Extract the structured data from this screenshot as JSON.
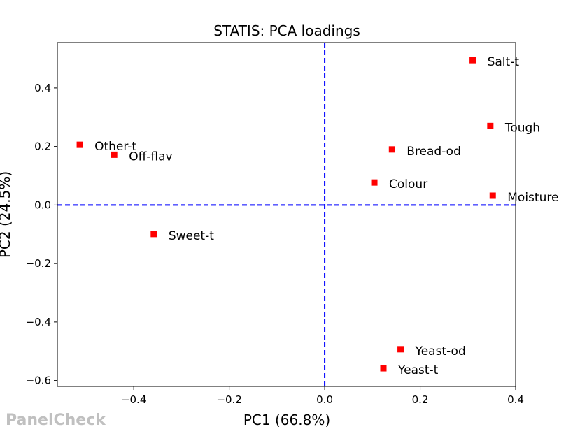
{
  "chart_data": {
    "type": "scatter",
    "title": "STATIS: PCA loadings",
    "xlabel": "PC1 (66.8%)",
    "ylabel": "PC2 (24.5%)",
    "xlim": [
      -0.56,
      0.4
    ],
    "ylim": [
      -0.62,
      0.555
    ],
    "xticks": [
      -0.4,
      -0.2,
      0.0,
      0.2,
      0.4
    ],
    "xtick_labels": [
      "−0.4",
      "−0.2",
      "0.0",
      "0.2",
      "0.4"
    ],
    "yticks": [
      -0.6,
      -0.4,
      -0.2,
      0.0,
      0.2,
      0.4
    ],
    "ytick_labels": [
      "−0.6",
      "−0.4",
      "−0.2",
      "0.0",
      "0.2",
      "0.4"
    ],
    "grid": false,
    "reference_lines": {
      "x": 0.0,
      "y": 0.0,
      "style": "dashed",
      "color": "#0000ff"
    },
    "marker": {
      "shape": "square",
      "color": "#ff0000"
    },
    "points": [
      {
        "label": "Salt-t",
        "x": 0.31,
        "y": 0.495
      },
      {
        "label": "Tough",
        "x": 0.347,
        "y": 0.27
      },
      {
        "label": "Bread-od",
        "x": 0.141,
        "y": 0.19
      },
      {
        "label": "Colour",
        "x": 0.104,
        "y": 0.077
      },
      {
        "label": "Moisture",
        "x": 0.352,
        "y": 0.032
      },
      {
        "label": "Other-t",
        "x": -0.513,
        "y": 0.206
      },
      {
        "label": "Off-flav",
        "x": -0.441,
        "y": 0.172
      },
      {
        "label": "Sweet-t",
        "x": -0.358,
        "y": -0.099
      },
      {
        "label": "Yeast-od",
        "x": 0.159,
        "y": -0.493
      },
      {
        "label": "Yeast-t",
        "x": 0.123,
        "y": -0.558
      }
    ]
  },
  "watermark": "PanelCheck"
}
